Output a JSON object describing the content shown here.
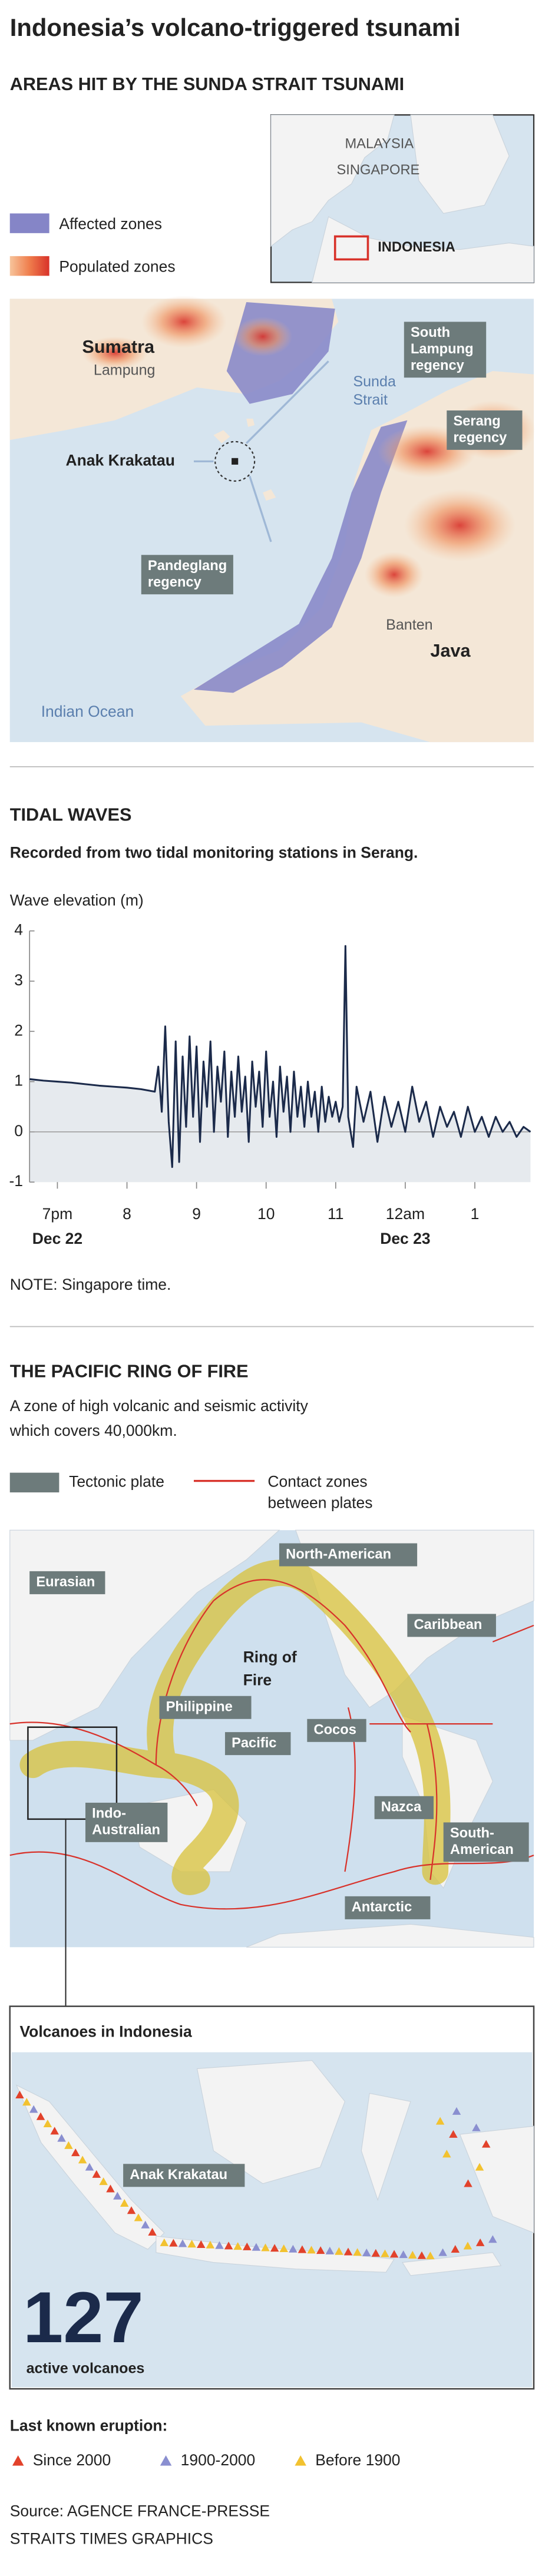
{
  "title": "Indonesia’s volcano-triggered tsunami",
  "sunda_section": {
    "heading": "AREAS HIT BY THE SUNDA STRAIT TSUNAMI",
    "legend": {
      "affected": "Affected zones",
      "populated": "Populated zones"
    },
    "inset": {
      "malaysia": "MALAYSIA",
      "singapore": "SINGAPORE",
      "indonesia": "INDONESIA"
    },
    "map": {
      "sumatra": "Sumatra",
      "lampung": "Lampung",
      "south_lampung": [
        "South",
        "Lampung",
        "regency"
      ],
      "sunda_strait": [
        "Sunda",
        "Strait"
      ],
      "serang": [
        "Serang",
        "regency"
      ],
      "anak_krakatau": "Anak Krakatau",
      "pandeglang": [
        "Pandeglang",
        "regency"
      ],
      "banten": "Banten",
      "java": "Java",
      "indian_ocean": "Indian Ocean"
    }
  },
  "chart_data": {
    "type": "line",
    "title": "TIDAL WAVES",
    "subtitle": "Recorded from two tidal monitoring stations in Serang.",
    "y_label": "Wave elevation (m)",
    "note": "NOTE: Singapore time.",
    "x": [
      18.6,
      18.8,
      19.0,
      19.2,
      19.4,
      19.6,
      19.8,
      20.0,
      20.2,
      20.4,
      20.45,
      20.5,
      20.55,
      20.6,
      20.65,
      20.7,
      20.75,
      20.8,
      20.85,
      20.9,
      20.95,
      21.0,
      21.05,
      21.1,
      21.15,
      21.2,
      21.25,
      21.3,
      21.35,
      21.4,
      21.45,
      21.5,
      21.55,
      21.6,
      21.65,
      21.7,
      21.75,
      21.8,
      21.85,
      21.9,
      21.95,
      22.0,
      22.05,
      22.1,
      22.15,
      22.2,
      22.25,
      22.3,
      22.35,
      22.4,
      22.45,
      22.5,
      22.55,
      22.6,
      22.65,
      22.7,
      22.75,
      22.8,
      22.85,
      22.9,
      22.95,
      23.0,
      23.05,
      23.1,
      23.14,
      23.18,
      23.25,
      23.3,
      23.4,
      23.5,
      23.6,
      23.7,
      23.8,
      23.9,
      24.0,
      24.1,
      24.2,
      24.3,
      24.4,
      24.5,
      24.6,
      24.7,
      24.8,
      24.9,
      25.0,
      25.1,
      25.2,
      25.3,
      25.4,
      25.5,
      25.6,
      25.7,
      25.8
    ],
    "series": [
      {
        "color": "#1b2a4a",
        "values": [
          1.05,
          1.02,
          1.0,
          0.98,
          0.95,
          0.92,
          0.9,
          0.88,
          0.85,
          0.8,
          1.3,
          0.4,
          2.1,
          0.2,
          -0.7,
          1.8,
          -0.6,
          1.5,
          0.1,
          1.9,
          0.3,
          1.7,
          -0.2,
          1.4,
          0.5,
          1.8,
          0.0,
          1.3,
          0.6,
          1.6,
          -0.1,
          1.2,
          0.3,
          1.5,
          0.4,
          1.1,
          -0.2,
          1.4,
          0.5,
          1.2,
          0.1,
          1.6,
          0.3,
          1.0,
          -0.1,
          1.3,
          0.4,
          1.1,
          0.0,
          1.2,
          0.3,
          0.9,
          0.1,
          1.0,
          0.3,
          0.8,
          0.0,
          0.9,
          0.2,
          0.7,
          0.3,
          0.6,
          0.2,
          0.5,
          3.7,
          0.3,
          -0.3,
          0.9,
          0.2,
          0.8,
          -0.2,
          0.7,
          0.1,
          0.6,
          0.0,
          0.9,
          0.2,
          0.6,
          -0.1,
          0.5,
          0.1,
          0.4,
          -0.1,
          0.5,
          0.0,
          0.3,
          -0.1,
          0.3,
          0.0,
          0.2,
          -0.1,
          0.1,
          0.0
        ]
      }
    ],
    "xlim": [
      18.6,
      25.8
    ],
    "ylim": [
      -1,
      4
    ],
    "yticks": [
      -1,
      0,
      1,
      2,
      3,
      4
    ],
    "xticks": [
      {
        "value": 19,
        "label": "7pm"
      },
      {
        "value": 20,
        "label": "8"
      },
      {
        "value": 21,
        "label": "9"
      },
      {
        "value": 22,
        "label": "10"
      },
      {
        "value": 23,
        "label": "11"
      },
      {
        "value": 24,
        "label": "12am"
      },
      {
        "value": 25,
        "label": "1"
      }
    ],
    "date_labels": [
      {
        "value": 19,
        "label": "Dec 22"
      },
      {
        "value": 24,
        "label": "Dec 23"
      }
    ]
  },
  "ring_section": {
    "heading": "THE PACIFIC RING OF FIRE",
    "description": [
      "A zone of high volcanic and seismic activity",
      "which covers 40,000km."
    ],
    "legend": {
      "plate": "Tectonic plate",
      "contact": [
        "Contact zones",
        "between plates"
      ]
    },
    "plates": {
      "eurasian": "Eurasian",
      "north_american": "North-American",
      "philippine": "Philippine",
      "caribbean": "Caribbean",
      "pacific": "Pacific",
      "cocos": "Cocos",
      "nazca": "Nazca",
      "indo_australian": [
        "Indo-",
        "Australian"
      ],
      "south_american": [
        "South-",
        "American"
      ],
      "antarctic": "Antarctic"
    },
    "ring_label": [
      "Ring of",
      "Fire"
    ]
  },
  "indonesia_map": {
    "heading": "Volcanoes in Indonesia",
    "anak_krakatau": "Anak Krakatau",
    "count": 127,
    "count_label": "active volcanoes"
  },
  "eruption_legend": {
    "heading": "Last known eruption:",
    "items": [
      {
        "name": "Since 2000",
        "color": "#e2422b"
      },
      {
        "name": "1900-2000",
        "color": "#8a8fd0"
      },
      {
        "name": "Before 1900",
        "color": "#f2c230"
      }
    ]
  },
  "source": [
    "Source: AGENCE FRANCE-PRESSE",
    "STRAITS TIMES GRAPHICS"
  ]
}
